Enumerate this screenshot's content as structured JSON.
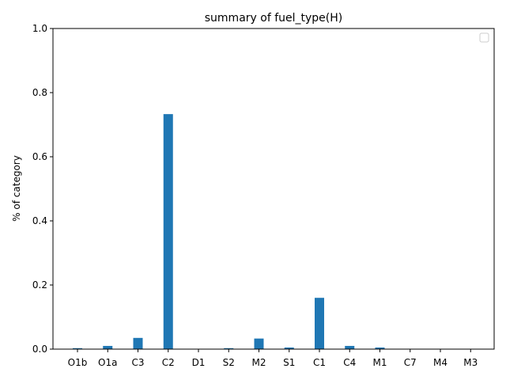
{
  "chart_data": {
    "type": "bar",
    "title": "summary of fuel_type(H)",
    "xlabel": "",
    "ylabel": "% of category",
    "categories": [
      "O1b",
      "O1a",
      "C3",
      "C2",
      "D1",
      "S2",
      "M2",
      "S1",
      "C1",
      "C4",
      "M1",
      "C7",
      "M4",
      "M3"
    ],
    "values": [
      0.003,
      0.01,
      0.035,
      0.733,
      0.0,
      0.003,
      0.033,
      0.005,
      0.16,
      0.01,
      0.005,
      0.0,
      0.0,
      0.0
    ],
    "ylim": [
      0,
      1.0
    ],
    "yticks": [
      "0.0",
      "0.2",
      "0.4",
      "0.6",
      "0.8",
      "1.0"
    ],
    "grid": false,
    "legend_position": "top-right",
    "bar_color": "#1f77b4"
  }
}
